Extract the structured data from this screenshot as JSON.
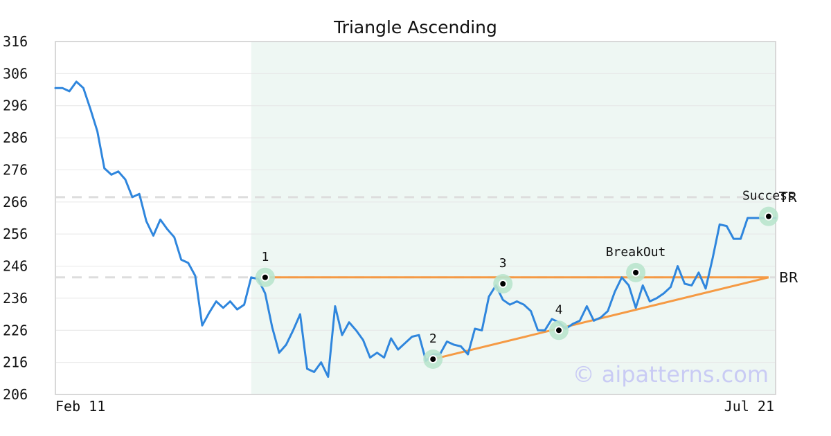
{
  "chart_data": {
    "type": "line",
    "title": "Triangle Ascending",
    "ylim": [
      206,
      316
    ],
    "yticks": [
      206,
      216,
      226,
      236,
      246,
      256,
      266,
      276,
      286,
      296,
      306,
      316
    ],
    "x_count": 104,
    "x_tick_labels": [
      {
        "index": 0,
        "label": "Feb 11"
      },
      {
        "index": 103,
        "label": "Jul 21"
      }
    ],
    "grid": true,
    "series": [
      {
        "color": "#2f86dd",
        "values": [
          301.5,
          301.5,
          300.5,
          303.5,
          301.5,
          295,
          288,
          276.5,
          274.5,
          275.5,
          273,
          267.5,
          268.5,
          260,
          255.5,
          260.5,
          257.5,
          255,
          248,
          247,
          243,
          227.5,
          231.5,
          235,
          233,
          235,
          232.5,
          234,
          242.5,
          242,
          237.5,
          227,
          219,
          221.5,
          226,
          231,
          214,
          213,
          216,
          211.5,
          233.5,
          224.5,
          228.5,
          226,
          223,
          217.5,
          219,
          217.5,
          223.5,
          220,
          222,
          224,
          224.5,
          216.5,
          218.5,
          218.5,
          222.5,
          221.5,
          221,
          218.5,
          226.5,
          226,
          236.5,
          240,
          235.5,
          234,
          235,
          234,
          232,
          226,
          226,
          229.5,
          228.5,
          226.5,
          228,
          229,
          233.5,
          229,
          230,
          232,
          238,
          242.5,
          240,
          233,
          240,
          235,
          236,
          237.5,
          239.5,
          246,
          240.5,
          240,
          244,
          239,
          248.5,
          259,
          258.5,
          254.5,
          254.5,
          261,
          261,
          261,
          261,
          261
        ]
      }
    ],
    "pattern_region": {
      "start_index": 28,
      "end_index": 105,
      "color": "#eef7f3"
    },
    "resistance": {
      "from_index": 30,
      "to_index": 102,
      "value": 242.5,
      "color": "#f59a44"
    },
    "support": {
      "from_index": 54,
      "to_index": 102,
      "from_value": 217,
      "to_value": 242.5,
      "color": "#f59a44"
    },
    "reference_lines": [
      {
        "label": "TR",
        "value": 267.5,
        "color": "#dddddd"
      },
      {
        "label": "BR",
        "value": 242.5,
        "color": "#dddddd"
      }
    ],
    "points": [
      {
        "label": "1",
        "index": 30,
        "value": 242.5
      },
      {
        "label": "2",
        "index": 54,
        "value": 217
      },
      {
        "label": "3",
        "index": 64,
        "value": 240.5
      },
      {
        "label": "4",
        "index": 72,
        "value": 226
      },
      {
        "label": "BreakOut",
        "index": 83,
        "value": 244
      },
      {
        "label": "Success",
        "index": 102,
        "value": 261.5
      }
    ],
    "marker_halo_color": "#b9e4cd",
    "watermark": "© aipatterns.com"
  }
}
